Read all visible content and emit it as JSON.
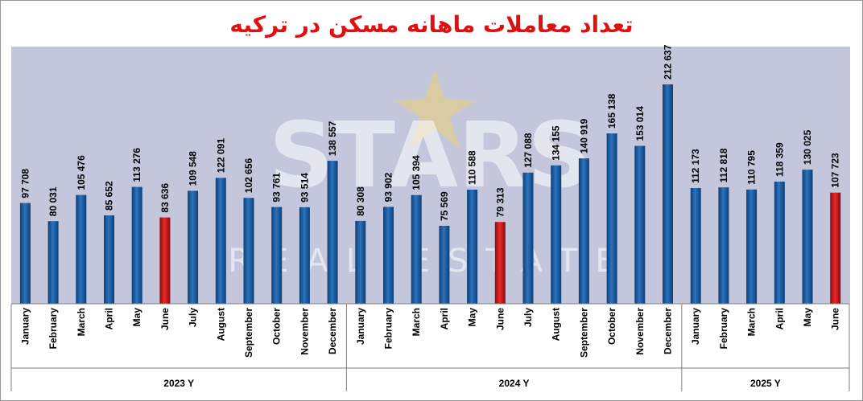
{
  "page_title": "تعداد معاملات ماهانه مسکن در ترکیه",
  "watermark": {
    "line1": "STARS",
    "line2": "REAL ESTATE"
  },
  "chart_data": {
    "type": "bar",
    "title": "تعداد معاملات ماهانه مسکن در ترکیه",
    "xlabel": "",
    "ylabel": "",
    "ylim": [
      0,
      220000
    ],
    "grid": false,
    "legend": "none",
    "colors": {
      "default": "#1f5fa3",
      "highlight": "#d11a1a"
    },
    "groups": [
      {
        "year_label": "2023  Y",
        "categories": [
          "January",
          "February",
          "March",
          "April",
          "May",
          "June",
          "July",
          "August",
          "September",
          "October",
          "November",
          "December"
        ],
        "values": [
          97708,
          80031,
          105476,
          85652,
          113276,
          83636,
          109548,
          122091,
          102656,
          93761,
          93514,
          138557
        ],
        "labels": [
          "97 708",
          "80 031",
          "105 476",
          "85 652",
          "113 276",
          "83 636",
          "109 548",
          "122 091",
          "102 656",
          "93 761",
          "93 514",
          "138 557"
        ],
        "highlight": [
          "June"
        ]
      },
      {
        "year_label": "2024  Y",
        "categories": [
          "January",
          "February",
          "March",
          "April",
          "May",
          "June",
          "July",
          "August",
          "September",
          "October",
          "November",
          "December"
        ],
        "values": [
          80308,
          93902,
          105394,
          75569,
          110588,
          79313,
          127088,
          134155,
          140919,
          165138,
          153014,
          212637
        ],
        "labels": [
          "80 308",
          "93 902",
          "105 394",
          "75 569",
          "110 588",
          "79 313",
          "127 088",
          "134 155",
          "140 919",
          "165 138",
          "153 014",
          "212 637"
        ],
        "highlight": [
          "June"
        ]
      },
      {
        "year_label": "2025  Y",
        "categories": [
          "January",
          "February",
          "March",
          "April",
          "May",
          "June"
        ],
        "values": [
          112173,
          112818,
          110795,
          118359,
          130025,
          107723
        ],
        "labels": [
          "112 173",
          "112 818",
          "110 795",
          "118 359",
          "130 025",
          "107 723"
        ],
        "highlight": [
          "June"
        ]
      }
    ]
  }
}
